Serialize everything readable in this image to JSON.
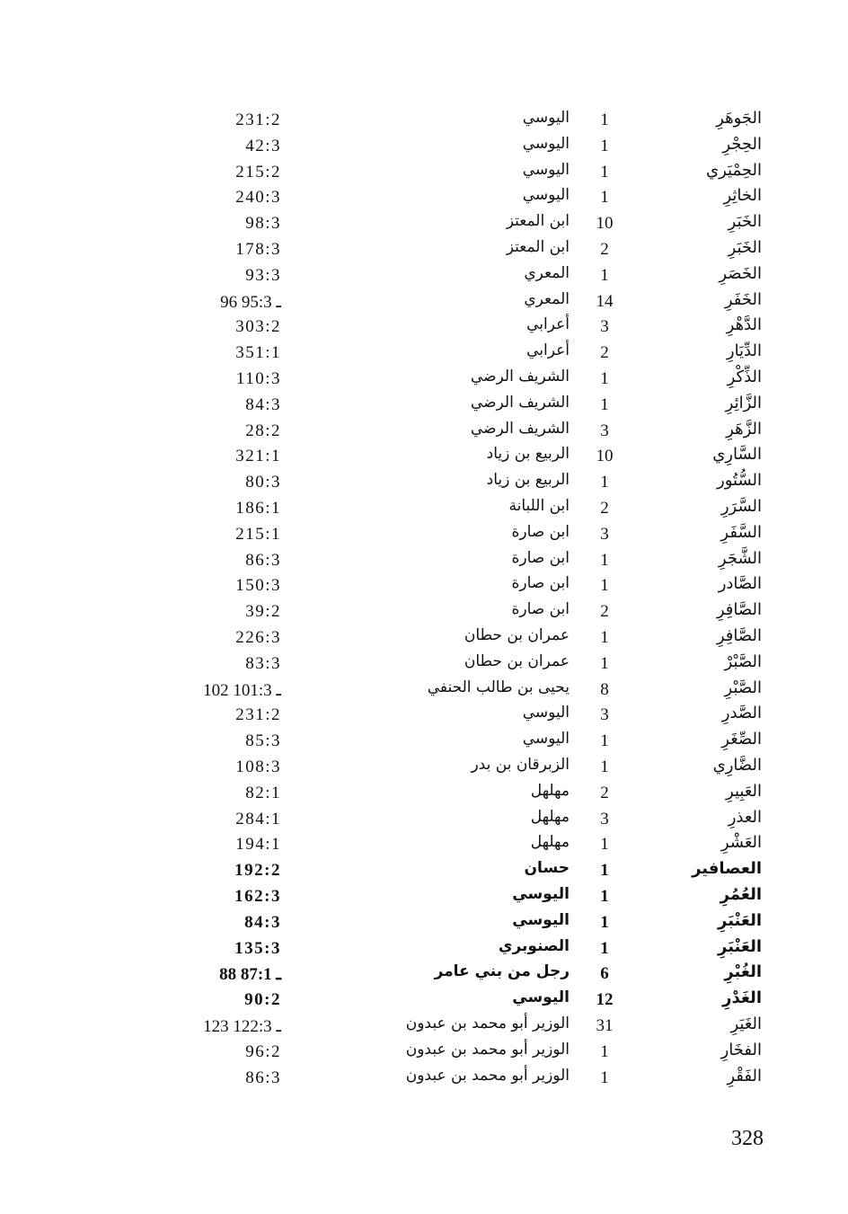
{
  "page_number": "328",
  "rows": [
    {
      "rhyme": "الجَوهَرِ",
      "count": "1",
      "poet": "اليوسي",
      "ref": "231:2"
    },
    {
      "rhyme": "الحِجْرِ",
      "count": "1",
      "poet": "اليوسي",
      "ref": "42:3"
    },
    {
      "rhyme": "الحِمْيَري",
      "count": "1",
      "poet": "اليوسي",
      "ref": "215:2"
    },
    {
      "rhyme": "الخاثِرِ",
      "count": "1",
      "poet": "اليوسي",
      "ref": "240:3"
    },
    {
      "rhyme": "الخَبَرِ",
      "count": "10",
      "poet": "ابن المعتز",
      "ref": "98:3"
    },
    {
      "rhyme": "الخَبَرِ",
      "count": "2",
      "poet": "ابن المعتز",
      "ref": "178:3"
    },
    {
      "rhyme": "الخَصَرِ",
      "count": "1",
      "poet": "المعري",
      "ref": "93:3"
    },
    {
      "rhyme": "الخَفَرِ",
      "count": "14",
      "poet": "المعري",
      "ref": "96 ـ 95:3"
    },
    {
      "rhyme": "الدَّهْرِ",
      "count": "3",
      "poet": "أعرابي",
      "ref": "303:2"
    },
    {
      "rhyme": "الدِّيَارِ",
      "count": "2",
      "poet": "أعرابي",
      "ref": "351:1"
    },
    {
      "rhyme": "الذِّكْرِ",
      "count": "1",
      "poet": "الشريف الرضي",
      "ref": "110:3"
    },
    {
      "rhyme": "الزَّائِرِ",
      "count": "1",
      "poet": "الشريف الرضي",
      "ref": "84:3"
    },
    {
      "rhyme": "الزَّهَرِ",
      "count": "3",
      "poet": "الشريف الرضي",
      "ref": "28:2"
    },
    {
      "rhyme": "السَّارِي",
      "count": "10",
      "poet": "الربيع بن زياد",
      "ref": "321:1"
    },
    {
      "rhyme": "السُّتُور",
      "count": "1",
      "poet": "الربيع بن زياد",
      "ref": "80:3"
    },
    {
      "rhyme": "السَّرَرِ",
      "count": "2",
      "poet": "ابن اللبانة",
      "ref": "186:1"
    },
    {
      "rhyme": "السَّفَرِ",
      "count": "3",
      "poet": "ابن صارة",
      "ref": "215:1"
    },
    {
      "rhyme": "الشَّجَرِ",
      "count": "1",
      "poet": "ابن صارة",
      "ref": "86:3"
    },
    {
      "rhyme": "الصَّادر",
      "count": "1",
      "poet": "ابن صارة",
      "ref": "150:3"
    },
    {
      "rhyme": "الصَّافِرِ",
      "count": "2",
      "poet": "ابن صارة",
      "ref": "39:2"
    },
    {
      "rhyme": "الصَّافِرِ",
      "count": "1",
      "poet": "عمران بن حطان",
      "ref": "226:3"
    },
    {
      "rhyme": "الصَّبْرْ",
      "count": "1",
      "poet": "عمران بن حطان",
      "ref": "83:3"
    },
    {
      "rhyme": "الصَّبْرِ",
      "count": "8",
      "poet": "يحيى بن طالب الحنفي",
      "ref": "102 ـ 101:3"
    },
    {
      "rhyme": "الصَّدرِ",
      "count": "3",
      "poet": "اليوسي",
      "ref": "231:2"
    },
    {
      "rhyme": "الصِّغَرِ",
      "count": "1",
      "poet": "اليوسي",
      "ref": "85:3"
    },
    {
      "rhyme": "الضَّارِي",
      "count": "1",
      "poet": "الزبرقان بن بدر",
      "ref": "108:3"
    },
    {
      "rhyme": "العَبِيرِ",
      "count": "2",
      "poet": "مهلهل",
      "ref": "82:1"
    },
    {
      "rhyme": "العذرِ",
      "count": "3",
      "poet": "مهلهل",
      "ref": "284:1"
    },
    {
      "rhyme": "العَشْرِ",
      "count": "1",
      "poet": "مهلهل",
      "ref": "194:1"
    },
    {
      "rhyme": "العصافير",
      "count": "1",
      "poet": "حسان",
      "ref": "192:2"
    },
    {
      "rhyme": "العُمُرِ",
      "count": "1",
      "poet": "اليوسي",
      "ref": "162:3"
    },
    {
      "rhyme": "العَنْبَرِ",
      "count": "1",
      "poet": "اليوسي",
      "ref": "84:3"
    },
    {
      "rhyme": "العَنْبَرِ",
      "count": "1",
      "poet": "الصنوبري",
      "ref": "135:3"
    },
    {
      "rhyme": "الغُبْرِ",
      "count": "6",
      "poet": "رجل من بني عامر",
      "ref": "88 ـ 87:1"
    },
    {
      "rhyme": "الغَدْرِ",
      "count": "12",
      "poet": "اليوسي",
      "ref": "90:2"
    },
    {
      "rhyme": "الغَيَرِ",
      "count": "31",
      "poet": "الوزير أبو محمد بن عبدون",
      "ref": "123 ـ 122:3"
    },
    {
      "rhyme": "الفخَارِ",
      "count": "1",
      "poet": "الوزير أبو محمد بن عبدون",
      "ref": "96:2"
    },
    {
      "rhyme": "الفَقْرِ",
      "count": "1",
      "poet": "الوزير أبو محمد بن عبدون",
      "ref": "86:3"
    }
  ]
}
